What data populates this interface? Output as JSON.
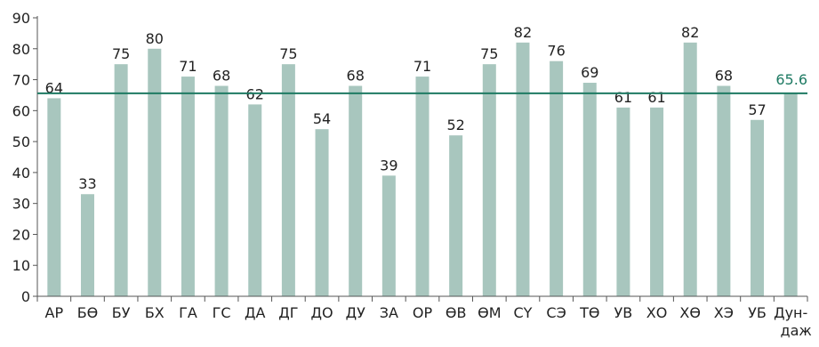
{
  "chart_data": {
    "type": "bar",
    "categories": [
      "АР",
      "БӨ",
      "БУ",
      "БХ",
      "ГА",
      "ГС",
      "ДА",
      "ДГ",
      "ДО",
      "ДУ",
      "ЗА",
      "ОР",
      "ӨВ",
      "ӨМ",
      "СҮ",
      "СЭ",
      "ТӨ",
      "УВ",
      "ХО",
      "ХӨ",
      "ХЭ",
      "УБ",
      "Дун-даж"
    ],
    "values": [
      64,
      33,
      75,
      80,
      71,
      68,
      62,
      75,
      54,
      68,
      39,
      71,
      52,
      75,
      82,
      76,
      69,
      61,
      61,
      82,
      68,
      57,
      65.6
    ],
    "data_labels": [
      "64",
      "33",
      "75",
      "80",
      "71",
      "68",
      "62",
      "75",
      "54",
      "68",
      "39",
      "71",
      "52",
      "75",
      "82",
      "76",
      "69",
      "61",
      "61",
      "82",
      "68",
      "57",
      ""
    ],
    "average": {
      "value": 65.6,
      "label": "65.6",
      "color": "#1e7a63"
    },
    "yticks": [
      "0",
      "10",
      "20",
      "30",
      "40",
      "50",
      "60",
      "70",
      "80",
      "90"
    ],
    "ylim": [
      0,
      90
    ],
    "title": "",
    "xlabel": "",
    "ylabel": "",
    "grid": false,
    "colors": {
      "bar": "#a8c6be",
      "axis": "#555555"
    }
  }
}
